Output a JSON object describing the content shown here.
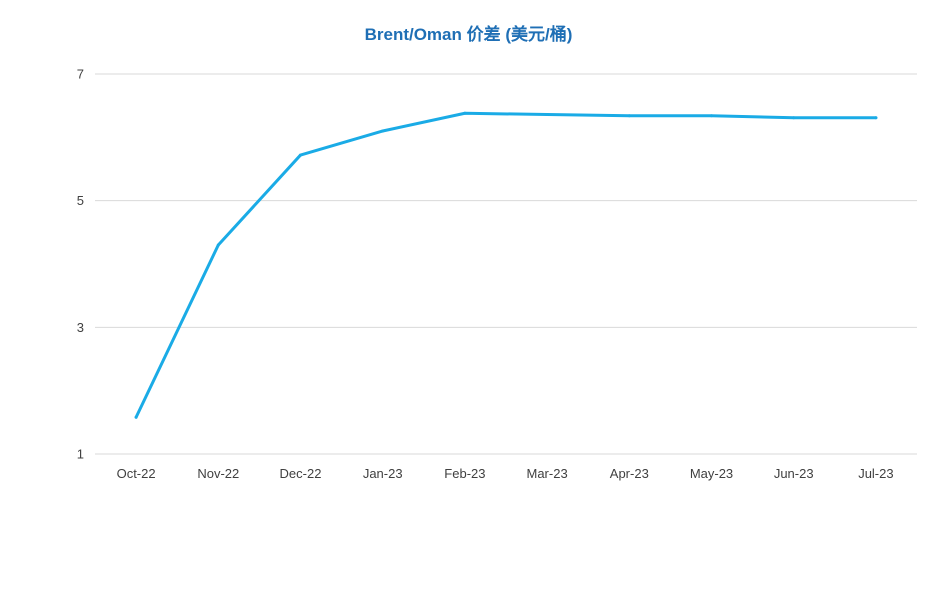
{
  "chart_data": {
    "type": "line",
    "title": "Brent/Oman 价差 (美元/桶)",
    "xlabel": "",
    "ylabel": "",
    "categories": [
      "Oct-22",
      "Nov-22",
      "Dec-22",
      "Jan-23",
      "Feb-23",
      "Mar-23",
      "Apr-23",
      "May-23",
      "Jun-23",
      "Jul-23"
    ],
    "series": [
      {
        "values": [
          1.58,
          4.3,
          5.72,
          6.1,
          6.38,
          6.36,
          6.34,
          6.34,
          6.31,
          6.31
        ],
        "color": "#1aabe6"
      }
    ],
    "ylim": [
      1,
      7
    ],
    "yticks": [
      "1",
      "3",
      "5",
      "7"
    ],
    "grid": true,
    "legend": "none"
  }
}
